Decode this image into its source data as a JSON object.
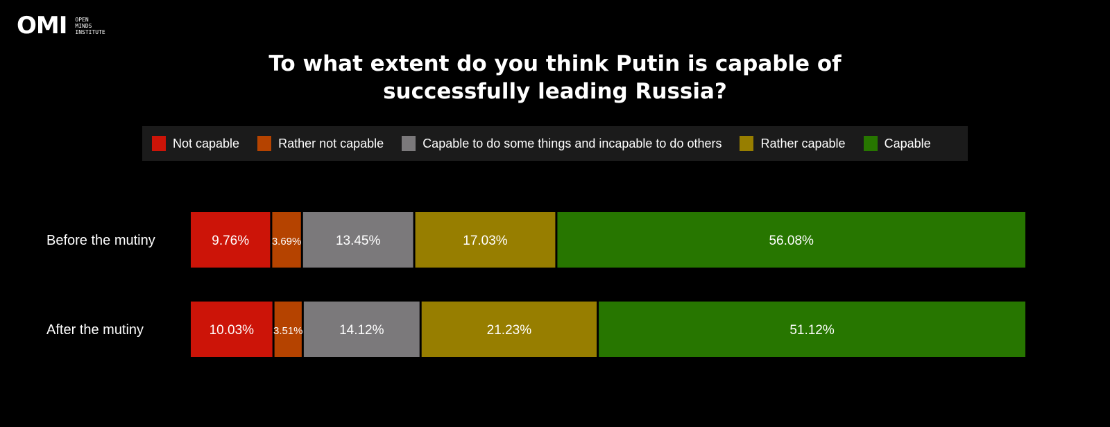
{
  "logo": {
    "word": "OMI",
    "lines": [
      "OPEN",
      "MINDS",
      "INSTITUTE"
    ]
  },
  "title_lines": [
    "To what extent do you think Putin is capable of",
    "successfully leading Russia?"
  ],
  "chart_data": {
    "type": "bar",
    "orientation": "horizontal",
    "stacked": true,
    "categories": [
      "Before the mutiny",
      "After the mutiny"
    ],
    "series": [
      {
        "name": "Not capable",
        "color": "#cc1408",
        "values": [
          9.76,
          10.03
        ],
        "labels": [
          "9.76%",
          "10.03%"
        ]
      },
      {
        "name": "Rather not capable",
        "color": "#b54300",
        "values": [
          3.69,
          3.51
        ],
        "labels": [
          "3.69%",
          "3.51%"
        ]
      },
      {
        "name": "Capable to do some things and incapable to do others",
        "color": "#7b797b",
        "values": [
          13.45,
          14.12
        ],
        "labels": [
          "13.45%",
          "14.12%"
        ]
      },
      {
        "name": "Rather capable",
        "color": "#977e00",
        "values": [
          17.03,
          21.23
        ],
        "labels": [
          "17.03%",
          "21.23%"
        ]
      },
      {
        "name": "Capable",
        "color": "#277600",
        "values": [
          56.08,
          51.12
        ],
        "labels": [
          "56.08%",
          "51.12%"
        ]
      }
    ],
    "legend_position": "top",
    "grid": false
  }
}
